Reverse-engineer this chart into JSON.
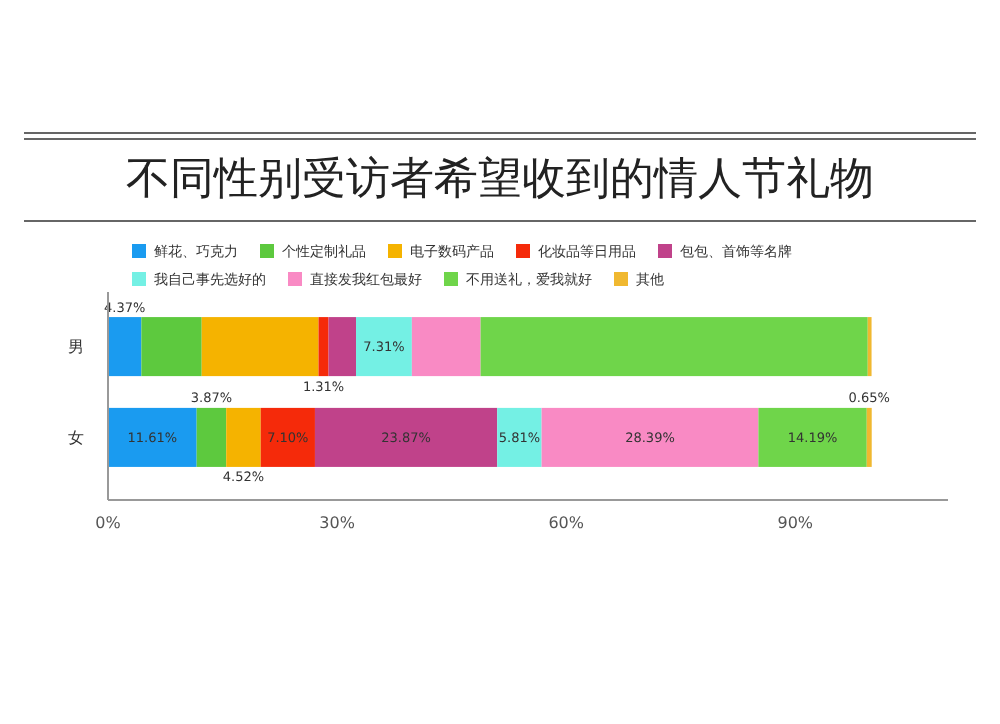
{
  "chart_data": {
    "type": "bar",
    "orientation": "horizontal",
    "stacked": true,
    "title": "不同性别受访者希望收到的情人节礼物",
    "categories": [
      "男",
      "女"
    ],
    "series": [
      {
        "name": "鲜花、巧克力",
        "color": "#1a9bf0",
        "values": [
          4.37,
          11.61
        ],
        "value_labels": [
          "4.37%",
          "11.61%"
        ]
      },
      {
        "name": "个性定制礼品",
        "color": "#5dc93e",
        "values": [
          7.9,
          3.87
        ],
        "value_labels": [
          null,
          "3.87%"
        ]
      },
      {
        "name": "电子数码产品",
        "color": "#f5b300",
        "values": [
          15.3,
          4.52
        ],
        "value_labels": [
          null,
          "4.52%"
        ]
      },
      {
        "name": "化妆品等日用品",
        "color": "#f52a0a",
        "values": [
          1.31,
          7.1
        ],
        "value_labels": [
          "1.31%",
          "7.10%"
        ]
      },
      {
        "name": "包包、首饰等名牌",
        "color": "#c0428a",
        "values": [
          3.6,
          23.87
        ],
        "value_labels": [
          null,
          "23.87%"
        ]
      },
      {
        "name": "我自己事先选好的",
        "color": "#74f0e4",
        "values": [
          7.31,
          5.81
        ],
        "value_labels": [
          "7.31%",
          "5.81%"
        ]
      },
      {
        "name": "直接发我红包最好",
        "color": "#f98ac4",
        "values": [
          9.0,
          28.39
        ],
        "value_labels": [
          null,
          "28.39%"
        ]
      },
      {
        "name": "不用送礼，爱我就好",
        "color": "#6fd54a",
        "values": [
          50.7,
          14.19
        ],
        "value_labels": [
          null,
          "14.19%"
        ]
      },
      {
        "name": "其他",
        "color": "#f0b830",
        "values": [
          0.5,
          0.65
        ],
        "value_labels": [
          null,
          "0.65%"
        ]
      }
    ],
    "xlim": [
      0,
      110
    ],
    "xticks": [
      {
        "value": 0,
        "label": "0%"
      },
      {
        "value": 30,
        "label": "30%"
      },
      {
        "value": 60,
        "label": "60%"
      },
      {
        "value": 90,
        "label": "90%"
      }
    ],
    "legend": "top",
    "grid": false
  }
}
